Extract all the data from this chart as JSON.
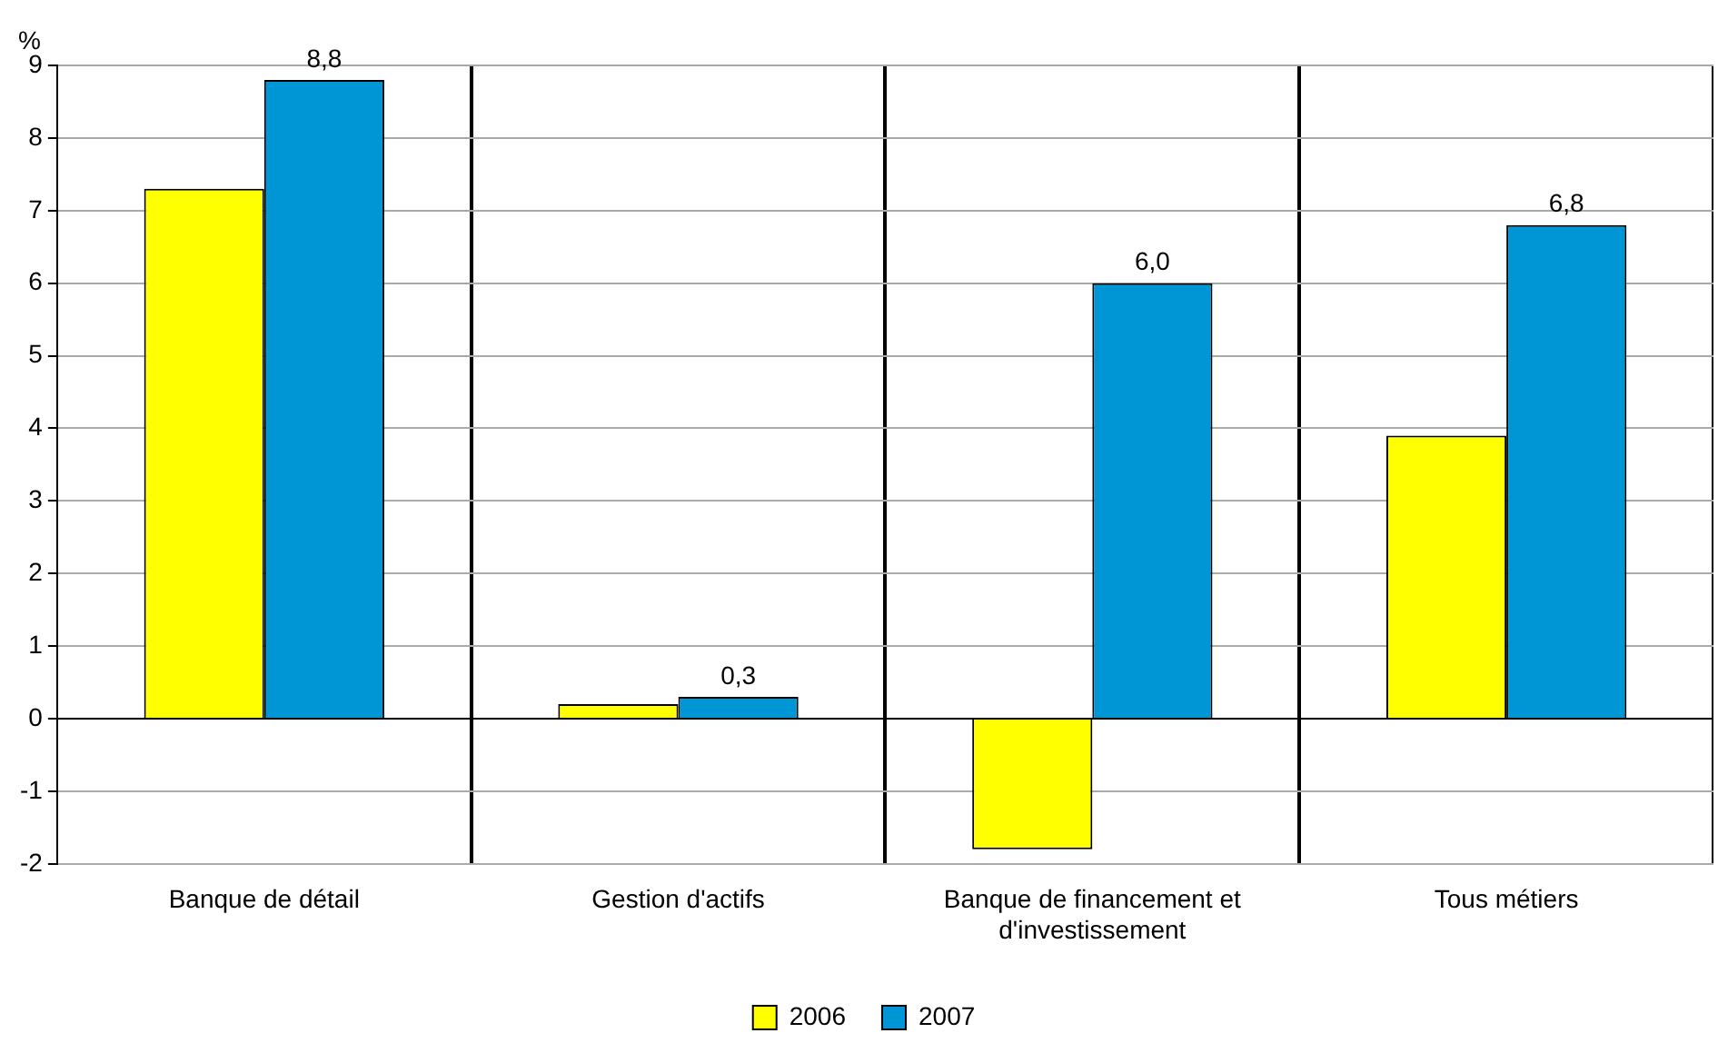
{
  "chart_data": {
    "type": "bar",
    "ylabel": "%",
    "categories": [
      "Banque de détail",
      "Gestion d'actifs",
      "Banque de financement et d'investissement",
      "Tous métiers"
    ],
    "series": [
      {
        "name": "2006",
        "color": "#ffff00",
        "values": [
          7.3,
          0.2,
          -1.8,
          3.9
        ]
      },
      {
        "name": "2007",
        "color": "#0096d6",
        "values": [
          8.8,
          0.3,
          6.0,
          6.8
        ],
        "value_labels": [
          "8,8",
          "0,3",
          "6,0",
          "6,8"
        ]
      }
    ],
    "ylim": [
      -2,
      9
    ],
    "yticks": [
      -2,
      -1,
      0,
      1,
      2,
      3,
      4,
      5,
      6,
      7,
      8,
      9
    ],
    "grid": true,
    "legend": "bottom"
  }
}
